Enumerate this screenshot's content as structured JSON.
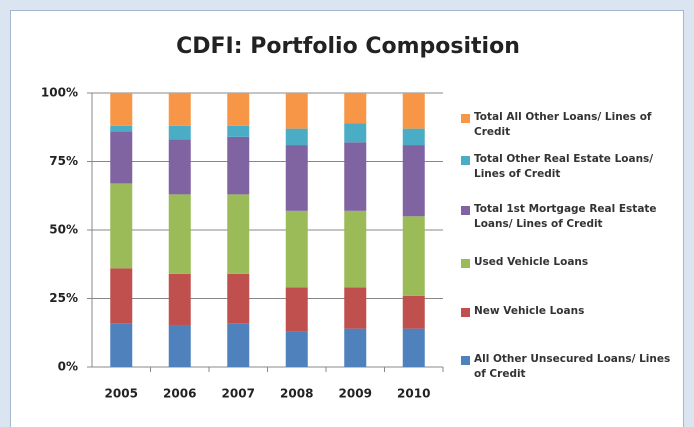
{
  "chart_data": {
    "type": "stacked_bar",
    "title": "CDFI: Portfolio Composition",
    "categories": [
      "2005",
      "2006",
      "2007",
      "2008",
      "2009",
      "2010"
    ],
    "series": [
      {
        "name": "All Other Unsecured Loans/ Lines of Credit",
        "color": "#4f81bd",
        "values": [
          16,
          15,
          16,
          13,
          14,
          14
        ]
      },
      {
        "name": "New Vehicle Loans",
        "color": "#c0504d",
        "values": [
          20,
          19,
          18,
          16,
          15,
          12
        ]
      },
      {
        "name": "Used Vehicle Loans",
        "color": "#9bbb59",
        "values": [
          31,
          29,
          29,
          28,
          28,
          29
        ]
      },
      {
        "name": "Total 1st Mortgage Real Estate Loans/ Lines of Credit",
        "color": "#8064a2",
        "values": [
          19,
          20,
          21,
          24,
          25,
          26
        ]
      },
      {
        "name": "Total Other Real Estate Loans/ Lines of Credit",
        "color": "#4bacc6",
        "values": [
          2,
          5,
          4,
          6,
          7,
          6
        ]
      },
      {
        "name": "Total All Other Loans/ Lines of Credit",
        "color": "#f79646",
        "values": [
          12,
          12,
          12,
          13,
          11,
          13
        ]
      }
    ],
    "ylim": [
      0,
      100
    ],
    "yticks": [
      {
        "value": 0,
        "label": "0%"
      },
      {
        "value": 25,
        "label": "25%"
      },
      {
        "value": 50,
        "label": "50%"
      },
      {
        "value": 75,
        "label": "75%"
      },
      {
        "value": 100,
        "label": "100%"
      }
    ],
    "grid": true,
    "legend": "right"
  }
}
